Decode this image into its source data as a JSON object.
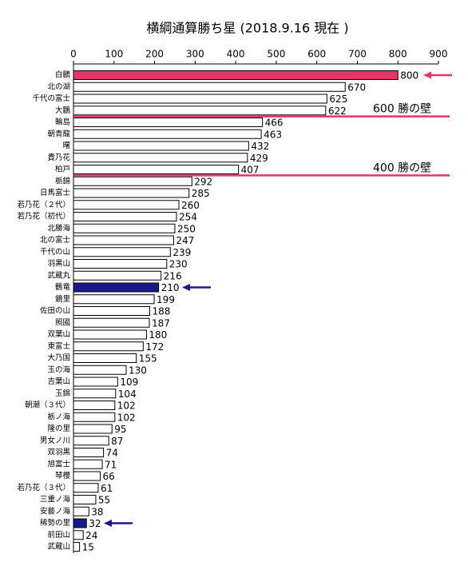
{
  "chart_data": {
    "type": "bar",
    "orientation": "horizontal",
    "title": "横綱通算勝ち星 (2018.9.16 現在 )",
    "categories": [
      "白鵬",
      "北の湖",
      "千代の富士",
      "大鵬",
      "輪島",
      "朝青龍",
      "曙",
      "貴乃花",
      "柏戸",
      "栃錦",
      "日馬富士",
      "若乃花（２代）",
      "若乃花（初代）",
      "北勝海",
      "北の富士",
      "千代の山",
      "羽黒山",
      "武蔵丸",
      "鶴竜",
      "鏡里",
      "佐田の山",
      "照國",
      "双葉山",
      "東富士",
      "大乃国",
      "玉の海",
      "吉葉山",
      "玉錦",
      "朝潮（３代）",
      "栃ノ海",
      "隆の里",
      "男女ノ川",
      "双羽黒",
      "旭富士",
      "琴櫻",
      "若乃花（３代）",
      "三重ノ海",
      "安藝ノ海",
      "稀勢の里",
      "前田山",
      "武蔵山"
    ],
    "values": [
      800,
      670,
      625,
      622,
      466,
      463,
      432,
      429,
      407,
      292,
      285,
      260,
      254,
      250,
      247,
      239,
      230,
      216,
      210,
      199,
      188,
      187,
      180,
      172,
      155,
      130,
      109,
      104,
      102,
      102,
      95,
      87,
      74,
      71,
      66,
      61,
      55,
      38,
      32,
      24,
      15
    ],
    "colors": [
      "#e8336b",
      "#ffffff",
      "#ffffff",
      "#ffffff",
      "#ffffff",
      "#ffffff",
      "#ffffff",
      "#ffffff",
      "#ffffff",
      "#ffffff",
      "#ffffff",
      "#ffffff",
      "#ffffff",
      "#ffffff",
      "#ffffff",
      "#ffffff",
      "#ffffff",
      "#ffffff",
      "#1a1a8c",
      "#ffffff",
      "#ffffff",
      "#ffffff",
      "#ffffff",
      "#ffffff",
      "#ffffff",
      "#ffffff",
      "#ffffff",
      "#ffffff",
      "#ffffff",
      "#ffffff",
      "#ffffff",
      "#ffffff",
      "#ffffff",
      "#ffffff",
      "#ffffff",
      "#ffffff",
      "#ffffff",
      "#ffffff",
      "#1a1a8c",
      "#ffffff",
      "#ffffff"
    ],
    "xlim": [
      0,
      900
    ],
    "xticks": [
      0,
      100,
      200,
      300,
      400,
      500,
      600,
      700,
      800,
      900
    ],
    "annotations": [
      "600 勝の壁",
      "400 勝の壁"
    ]
  }
}
